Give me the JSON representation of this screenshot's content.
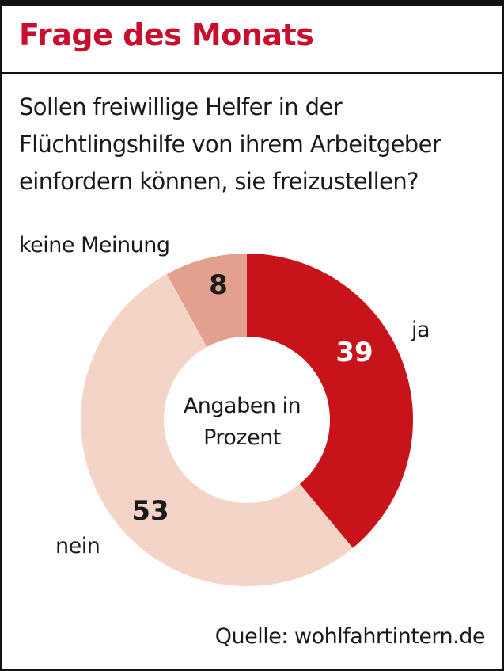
{
  "title": "Frage des Monats",
  "question": [
    "Sollen freiwillige Helfer in der",
    "Flüchtlingshilfe von ihrem Arbeitgeber",
    "einfordern können, sie freizustellen?"
  ],
  "source": "Quelle: wohlfahrtintern.de",
  "colors": {
    "title": "#c8102e",
    "ja": "#c8131a",
    "keine": "#e3a08e",
    "nein": "#f5d4c8",
    "value_light": "#ffffff",
    "value_dark": "#1a1a1a"
  },
  "chart_data": {
    "type": "pie",
    "style": "donut",
    "unit": "Prozent",
    "center_label": [
      "Angaben in",
      "Prozent"
    ],
    "slices": [
      {
        "label": "ja",
        "value": 39
      },
      {
        "label": "nein",
        "value": 53
      },
      {
        "label": "keine Meinung",
        "value": 8
      }
    ]
  }
}
